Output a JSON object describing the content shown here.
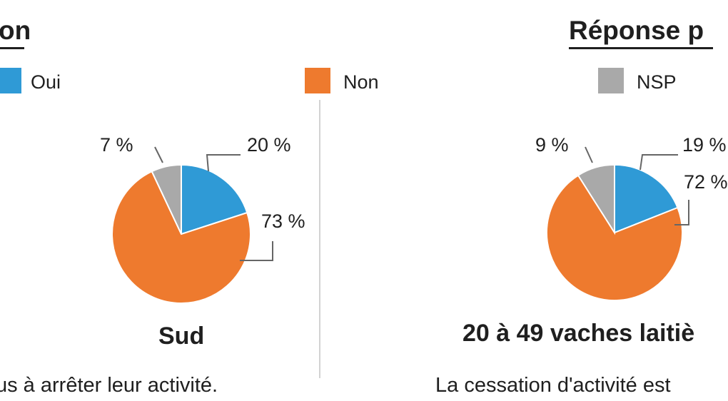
{
  "titles": {
    "left_partial": "on",
    "right_partial": "Réponse p"
  },
  "legend": [
    {
      "label": "Oui",
      "color": "#2f9ad6",
      "icon": "blue-square-icon"
    },
    {
      "label": "Non",
      "color": "#ee7a2e",
      "icon": "orange-square-icon"
    },
    {
      "label": "NSP",
      "color": "#a9a9a9",
      "icon": "gray-square-icon"
    }
  ],
  "chart_data": [
    {
      "type": "pie",
      "title": "Sud",
      "slices": [
        {
          "label": "Oui",
          "value": 20,
          "text": "20 %",
          "color": "#2f9ad6"
        },
        {
          "label": "Non",
          "value": 73,
          "text": "73 %",
          "color": "#ee7a2e"
        },
        {
          "label": "NSP",
          "value": 7,
          "text": "7 %",
          "color": "#a9a9a9"
        }
      ]
    },
    {
      "type": "pie",
      "title": "20 à 49 vaches laitiè",
      "slices": [
        {
          "label": "Oui",
          "value": 19,
          "text": "19 %",
          "color": "#2f9ad6"
        },
        {
          "label": "Non",
          "value": 72,
          "text": "72 %",
          "color": "#ee7a2e"
        },
        {
          "label": "NSP",
          "value": 9,
          "text": "9 %",
          "color": "#a9a9a9"
        }
      ]
    }
  ],
  "captions": {
    "left": "us à arrêter leur activité.",
    "right": "La cessation d'activité est"
  }
}
